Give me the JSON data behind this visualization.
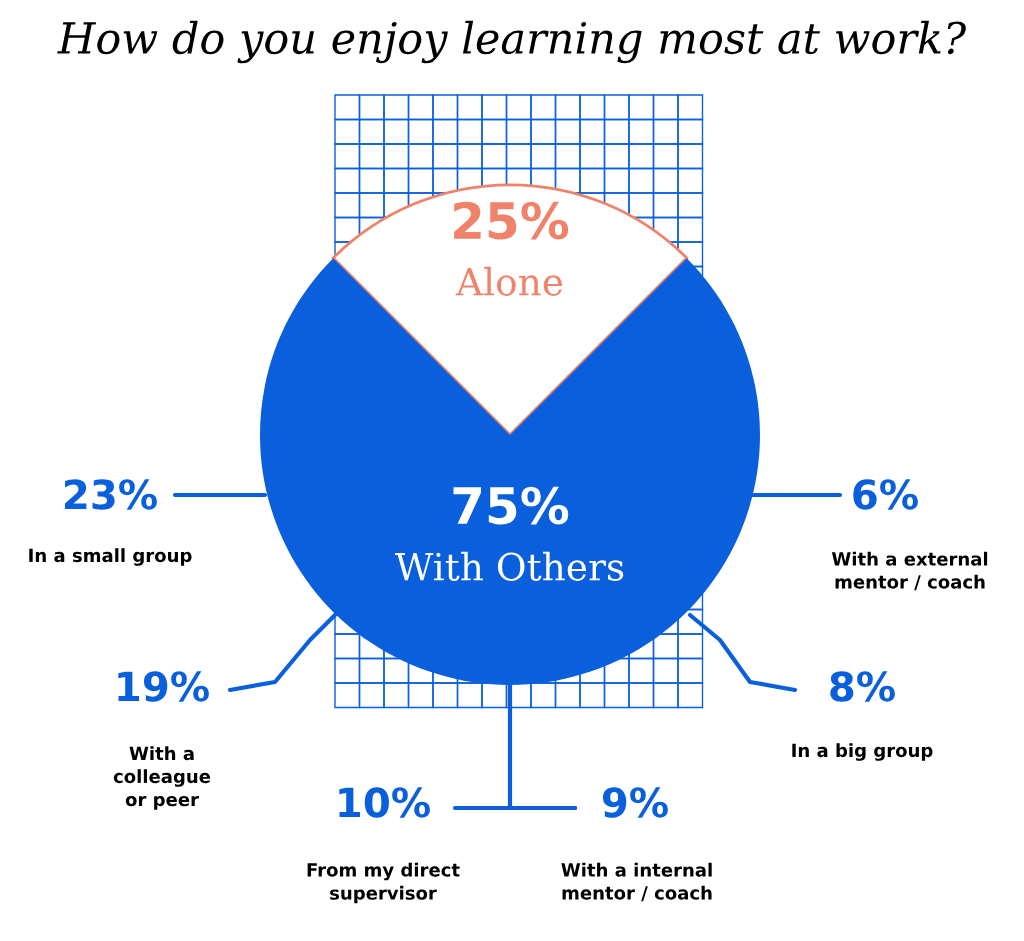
{
  "chart_data": {
    "type": "pie",
    "title": "How do you enjoy learning most at work?",
    "categories": [
      "Alone",
      "With Others"
    ],
    "values": [
      25,
      75
    ],
    "colors": [
      "#ffffff",
      "#0a5fdc"
    ],
    "value_labels": [
      "25%",
      "75%"
    ],
    "annotations": [
      "23%",
      "In a small group",
      "19%",
      "With a\ncolleague\nor peer",
      "10%",
      "From my direct\nsupervisor",
      "9%",
      "With a internal\nmentor / coach",
      "8%",
      "In a big group",
      "6%",
      "With a external\nmentor / coach"
    ]
  }
}
